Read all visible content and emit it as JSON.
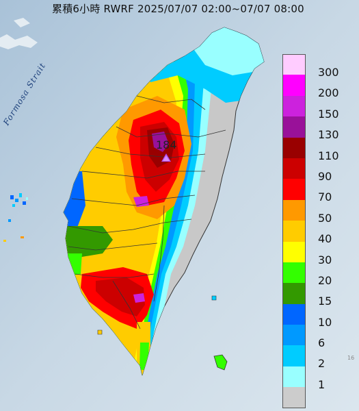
{
  "title": "累積6小時 RWRF 2025/07/07 02:00~07/07 08:00",
  "strait_label": "Formosa Strait",
  "max_value": "184",
  "corner_mark": "16",
  "legend": [
    {
      "label": "300",
      "color": "#ffccff"
    },
    {
      "label": "200",
      "color": "#ff00ff"
    },
    {
      "label": "150",
      "color": "#cc22dd"
    },
    {
      "label": "130",
      "color": "#991199"
    },
    {
      "label": "110",
      "color": "#990000"
    },
    {
      "label": "90",
      "color": "#cc0000"
    },
    {
      "label": "70",
      "color": "#ff0000"
    },
    {
      "label": "50",
      "color": "#ff9900"
    },
    {
      "label": "40",
      "color": "#ffcc00"
    },
    {
      "label": "30",
      "color": "#ffff00"
    },
    {
      "label": "20",
      "color": "#33ff00"
    },
    {
      "label": "15",
      "color": "#339900"
    },
    {
      "label": "10",
      "color": "#0066ff"
    },
    {
      "label": "6",
      "color": "#0099ff"
    },
    {
      "label": "2",
      "color": "#00ccff"
    },
    {
      "label": "1",
      "color": "#99ffff"
    },
    {
      "label": "",
      "color": "#cccccc"
    }
  ]
}
